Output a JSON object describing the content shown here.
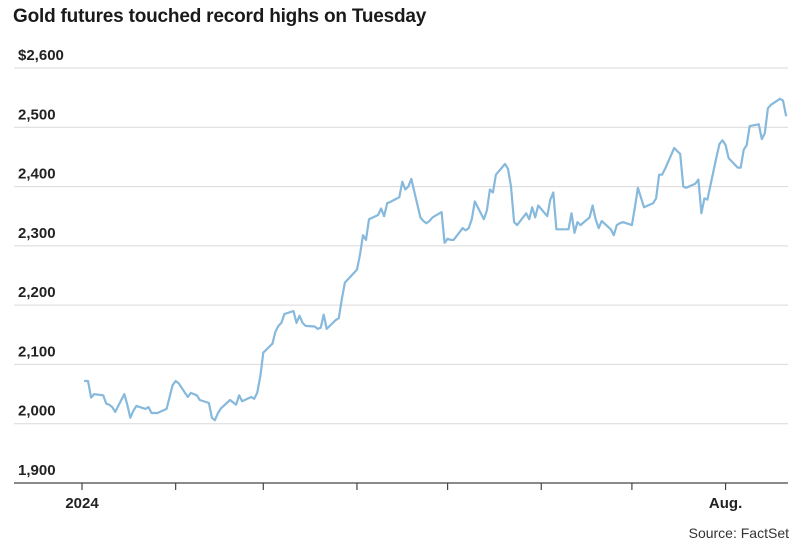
{
  "title": "Gold futures touched record highs on Tuesday",
  "source": "Source: FactSet",
  "chart_data": {
    "type": "line",
    "title": "Gold futures touched record highs on Tuesday",
    "xlabel": "",
    "ylabel": "",
    "ylim": [
      1900,
      2600
    ],
    "y_ticks": [
      {
        "value": 2600,
        "label": "$2,600"
      },
      {
        "value": 2500,
        "label": "2,500"
      },
      {
        "value": 2400,
        "label": "2,400"
      },
      {
        "value": 2300,
        "label": "2,300"
      },
      {
        "value": 2200,
        "label": "2,200"
      },
      {
        "value": 2100,
        "label": "2,100"
      },
      {
        "value": 2000,
        "label": "2,000"
      },
      {
        "value": 1900,
        "label": "1,900"
      }
    ],
    "x_ticks": [
      {
        "date": "2024-01-01",
        "label": "2024"
      },
      {
        "date": "2024-02-01",
        "label": ""
      },
      {
        "date": "2024-03-01",
        "label": ""
      },
      {
        "date": "2024-04-01",
        "label": ""
      },
      {
        "date": "2024-05-01",
        "label": ""
      },
      {
        "date": "2024-06-01",
        "label": ""
      },
      {
        "date": "2024-07-01",
        "label": ""
      },
      {
        "date": "2024-08-01",
        "label": "Aug."
      }
    ],
    "grid": true,
    "line_color": "#86b9dc",
    "series": [
      {
        "points": [
          [
            "2024-01-02",
            2072
          ],
          [
            "2024-01-03",
            2072
          ],
          [
            "2024-01-04",
            2044
          ],
          [
            "2024-01-05",
            2050
          ],
          [
            "2024-01-08",
            2048
          ],
          [
            "2024-01-09",
            2034
          ],
          [
            "2024-01-10",
            2032
          ],
          [
            "2024-01-11",
            2028
          ],
          [
            "2024-01-12",
            2020
          ],
          [
            "2024-01-15",
            2050
          ],
          [
            "2024-01-16",
            2032
          ],
          [
            "2024-01-17",
            2010
          ],
          [
            "2024-01-18",
            2022
          ],
          [
            "2024-01-19",
            2030
          ],
          [
            "2024-01-22",
            2025
          ],
          [
            "2024-01-23",
            2028
          ],
          [
            "2024-01-24",
            2018
          ],
          [
            "2024-01-25",
            2018
          ],
          [
            "2024-01-26",
            2018
          ],
          [
            "2024-01-29",
            2025
          ],
          [
            "2024-01-30",
            2045
          ],
          [
            "2024-01-31",
            2065
          ],
          [
            "2024-02-01",
            2072
          ],
          [
            "2024-02-02",
            2068
          ],
          [
            "2024-02-05",
            2045
          ],
          [
            "2024-02-06",
            2052
          ],
          [
            "2024-02-07",
            2050
          ],
          [
            "2024-02-08",
            2048
          ],
          [
            "2024-02-09",
            2040
          ],
          [
            "2024-02-12",
            2035
          ],
          [
            "2024-02-13",
            2010
          ],
          [
            "2024-02-14",
            2006
          ],
          [
            "2024-02-15",
            2018
          ],
          [
            "2024-02-16",
            2026
          ],
          [
            "2024-02-19",
            2040
          ],
          [
            "2024-02-20",
            2036
          ],
          [
            "2024-02-21",
            2032
          ],
          [
            "2024-02-22",
            2048
          ],
          [
            "2024-02-23",
            2038
          ],
          [
            "2024-02-26",
            2045
          ],
          [
            "2024-02-27",
            2042
          ],
          [
            "2024-02-28",
            2052
          ],
          [
            "2024-02-29",
            2080
          ],
          [
            "2024-03-01",
            2120
          ],
          [
            "2024-03-04",
            2135
          ],
          [
            "2024-03-05",
            2155
          ],
          [
            "2024-03-06",
            2165
          ],
          [
            "2024-03-07",
            2170
          ],
          [
            "2024-03-08",
            2185
          ],
          [
            "2024-03-11",
            2190
          ],
          [
            "2024-03-12",
            2170
          ],
          [
            "2024-03-13",
            2182
          ],
          [
            "2024-03-14",
            2170
          ],
          [
            "2024-03-15",
            2165
          ],
          [
            "2024-03-18",
            2164
          ],
          [
            "2024-03-19",
            2160
          ],
          [
            "2024-03-20",
            2162
          ],
          [
            "2024-03-21",
            2184
          ],
          [
            "2024-03-22",
            2160
          ],
          [
            "2024-03-25",
            2175
          ],
          [
            "2024-03-26",
            2178
          ],
          [
            "2024-03-27",
            2210
          ],
          [
            "2024-03-28",
            2238
          ],
          [
            "2024-04-01",
            2260
          ],
          [
            "2024-04-02",
            2285
          ],
          [
            "2024-04-03",
            2318
          ],
          [
            "2024-04-04",
            2310
          ],
          [
            "2024-04-05",
            2345
          ],
          [
            "2024-04-08",
            2352
          ],
          [
            "2024-04-09",
            2363
          ],
          [
            "2024-04-10",
            2350
          ],
          [
            "2024-04-11",
            2372
          ],
          [
            "2024-04-12",
            2374
          ],
          [
            "2024-04-15",
            2382
          ],
          [
            "2024-04-16",
            2408
          ],
          [
            "2024-04-17",
            2395
          ],
          [
            "2024-04-18",
            2400
          ],
          [
            "2024-04-19",
            2413
          ],
          [
            "2024-04-22",
            2348
          ],
          [
            "2024-04-23",
            2342
          ],
          [
            "2024-04-24",
            2338
          ],
          [
            "2024-04-25",
            2342
          ],
          [
            "2024-04-26",
            2348
          ],
          [
            "2024-04-29",
            2357
          ],
          [
            "2024-04-30",
            2305
          ],
          [
            "2024-05-01",
            2312
          ],
          [
            "2024-05-02",
            2310
          ],
          [
            "2024-05-03",
            2310
          ],
          [
            "2024-05-06",
            2330
          ],
          [
            "2024-05-07",
            2326
          ],
          [
            "2024-05-08",
            2330
          ],
          [
            "2024-05-09",
            2345
          ],
          [
            "2024-05-10",
            2375
          ],
          [
            "2024-05-13",
            2345
          ],
          [
            "2024-05-14",
            2360
          ],
          [
            "2024-05-15",
            2395
          ],
          [
            "2024-05-16",
            2390
          ],
          [
            "2024-05-17",
            2420
          ],
          [
            "2024-05-20",
            2438
          ],
          [
            "2024-05-21",
            2430
          ],
          [
            "2024-05-22",
            2400
          ],
          [
            "2024-05-23",
            2340
          ],
          [
            "2024-05-24",
            2335
          ],
          [
            "2024-05-27",
            2355
          ],
          [
            "2024-05-28",
            2345
          ],
          [
            "2024-05-29",
            2365
          ],
          [
            "2024-05-30",
            2348
          ],
          [
            "2024-05-31",
            2368
          ],
          [
            "2024-06-03",
            2350
          ],
          [
            "2024-06-04",
            2378
          ],
          [
            "2024-06-05",
            2390
          ],
          [
            "2024-06-06",
            2328
          ],
          [
            "2024-06-07",
            2328
          ],
          [
            "2024-06-10",
            2328
          ],
          [
            "2024-06-11",
            2355
          ],
          [
            "2024-06-12",
            2322
          ],
          [
            "2024-06-13",
            2340
          ],
          [
            "2024-06-14",
            2335
          ],
          [
            "2024-06-17",
            2348
          ],
          [
            "2024-06-18",
            2368
          ],
          [
            "2024-06-19",
            2345
          ],
          [
            "2024-06-20",
            2330
          ],
          [
            "2024-06-21",
            2342
          ],
          [
            "2024-06-24",
            2328
          ],
          [
            "2024-06-25",
            2318
          ],
          [
            "2024-06-26",
            2335
          ],
          [
            "2024-06-27",
            2338
          ],
          [
            "2024-06-28",
            2340
          ],
          [
            "2024-07-01",
            2335
          ],
          [
            "2024-07-02",
            2365
          ],
          [
            "2024-07-03",
            2398
          ],
          [
            "2024-07-05",
            2365
          ],
          [
            "2024-07-08",
            2372
          ],
          [
            "2024-07-09",
            2380
          ],
          [
            "2024-07-10",
            2420
          ],
          [
            "2024-07-11",
            2420
          ],
          [
            "2024-07-12",
            2430
          ],
          [
            "2024-07-15",
            2465
          ],
          [
            "2024-07-16",
            2460
          ],
          [
            "2024-07-17",
            2455
          ],
          [
            "2024-07-18",
            2400
          ],
          [
            "2024-07-19",
            2398
          ],
          [
            "2024-07-22",
            2405
          ],
          [
            "2024-07-23",
            2412
          ],
          [
            "2024-07-24",
            2355
          ],
          [
            "2024-07-25",
            2380
          ],
          [
            "2024-07-26",
            2378
          ],
          [
            "2024-07-29",
            2450
          ],
          [
            "2024-07-30",
            2472
          ],
          [
            "2024-07-31",
            2478
          ],
          [
            "2024-08-01",
            2470
          ],
          [
            "2024-08-02",
            2448
          ],
          [
            "2024-08-05",
            2432
          ],
          [
            "2024-08-06",
            2432
          ],
          [
            "2024-08-07",
            2462
          ],
          [
            "2024-08-08",
            2470
          ],
          [
            "2024-08-09",
            2502
          ],
          [
            "2024-08-12",
            2505
          ],
          [
            "2024-08-13",
            2480
          ],
          [
            "2024-08-14",
            2490
          ],
          [
            "2024-08-15",
            2532
          ],
          [
            "2024-08-16",
            2538
          ],
          [
            "2024-08-19",
            2548
          ],
          [
            "2024-08-20",
            2545
          ],
          [
            "2024-08-21",
            2520
          ]
        ]
      }
    ]
  }
}
